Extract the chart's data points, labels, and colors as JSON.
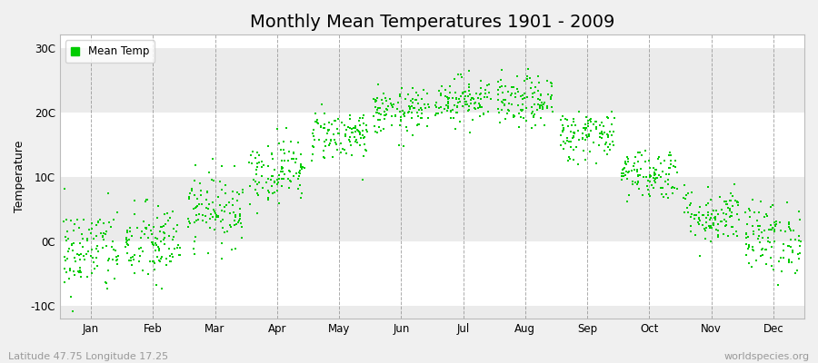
{
  "title": "Monthly Mean Temperatures 1901 - 2009",
  "ylabel": "Temperature",
  "ytick_labels": [
    "-10C",
    "0C",
    "10C",
    "20C",
    "30C"
  ],
  "ytick_values": [
    -10,
    0,
    10,
    20,
    30
  ],
  "ylim": [
    -12,
    32
  ],
  "months": [
    "Jan",
    "Feb",
    "Mar",
    "Apr",
    "May",
    "Jun",
    "Jul",
    "Aug",
    "Sep",
    "Oct",
    "Nov",
    "Dec"
  ],
  "month_means": [
    -1.5,
    -0.5,
    5.0,
    11.0,
    16.5,
    20.0,
    22.0,
    21.5,
    16.5,
    10.5,
    4.0,
    0.5
  ],
  "month_stds": [
    3.5,
    3.2,
    2.8,
    2.5,
    2.0,
    1.8,
    1.8,
    2.0,
    2.0,
    2.0,
    2.2,
    2.8
  ],
  "n_years": 109,
  "dot_color": "#00cc00",
  "dot_size": 2.5,
  "background_color": "#f0f0f0",
  "plot_bg_white": "#ffffff",
  "plot_bg_gray": "#ebebeb",
  "dashed_color": "#888888",
  "title_fontsize": 14,
  "label_fontsize": 9,
  "tick_fontsize": 8.5,
  "legend_label": "Mean Temp",
  "footer_left": "Latitude 47.75 Longitude 17.25",
  "footer_right": "worldspecies.org",
  "footer_fontsize": 8,
  "footer_color": "#999999"
}
